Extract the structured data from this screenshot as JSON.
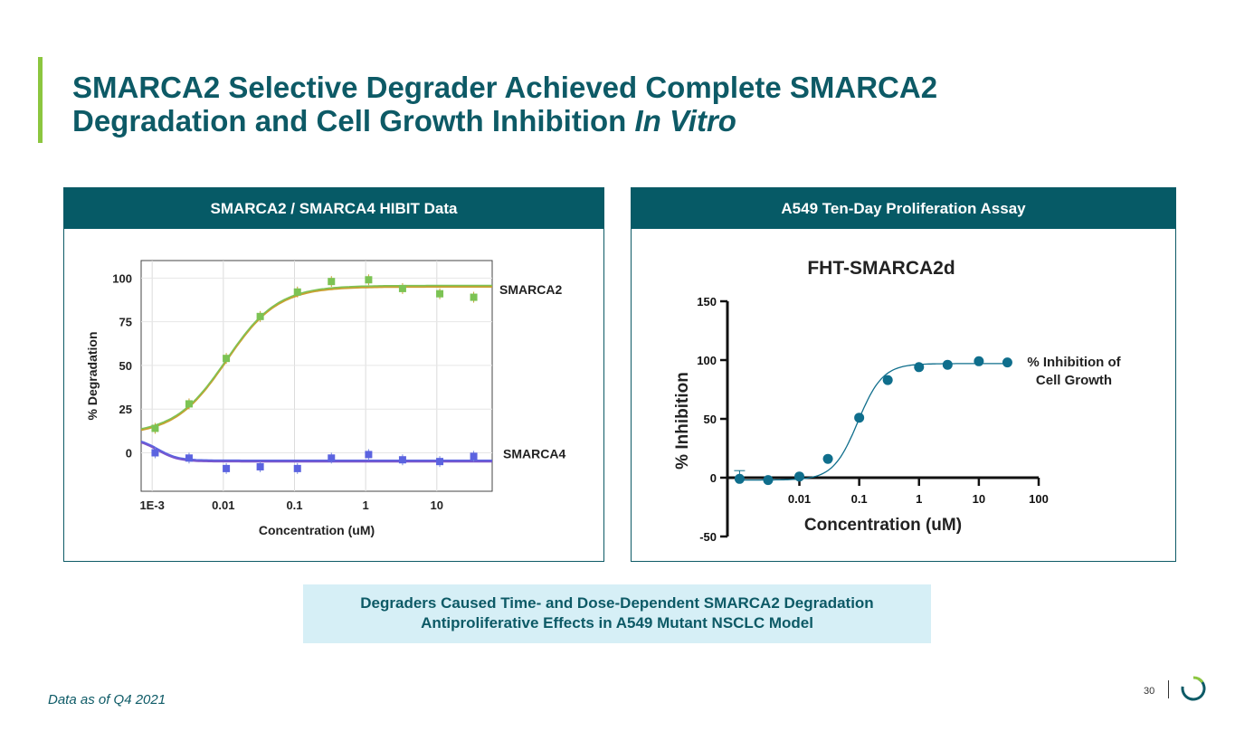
{
  "slide": {
    "title_line1": "SMARCA2 Selective Degrader Achieved Complete SMARCA2",
    "title_line2_plain": "Degradation and Cell Growth Inhibition ",
    "title_line2_italic": "In Vitro",
    "summary_line1": "Degraders Caused Time- and Dose-Dependent SMARCA2 Degradation",
    "summary_line2": "Antiproliferative Effects in A549 Mutant NSCLC Model",
    "footnote": "Data as of Q4 2021",
    "page_number": "30",
    "colors": {
      "brand_teal": "#065a66",
      "accent_green": "#8cc63f",
      "summary_bg": "#d6eff6"
    }
  },
  "panels": {
    "left_header": "SMARCA2 / SMARCA4 HIBIT Data",
    "right_header": "A549 Ten-Day Proliferation Assay"
  },
  "chart_data": [
    {
      "type": "scatter",
      "title": "",
      "xlabel": "Concentration (uM)",
      "ylabel": "% Degradation",
      "xscale": "log",
      "xlim": [
        0.0007,
        60
      ],
      "ylim": [
        -22,
        110
      ],
      "x_tick_values": [
        0.001,
        0.01,
        0.1,
        1,
        10
      ],
      "x_tick_labels": [
        "1E-3",
        "0.01",
        "0.1",
        "1",
        "10"
      ],
      "y_ticks": [
        0,
        25,
        50,
        75,
        100
      ],
      "grid": true,
      "series": [
        {
          "name": "SMARCA2",
          "color": "#7cc354",
          "fit_color": "#c8a030",
          "x": [
            0.0011,
            0.0033,
            0.011,
            0.033,
            0.11,
            0.33,
            1.1,
            3.3,
            11,
            33
          ],
          "y": [
            14,
            28,
            54,
            78,
            92,
            98,
            99,
            94,
            91,
            89
          ],
          "fit": {
            "bottom": 10,
            "top": 95,
            "ec50": 0.011,
            "hill": 1.2
          }
        },
        {
          "name": "SMARCA4",
          "color": "#5b63e0",
          "fit_color": "#7a55cc",
          "x": [
            0.0011,
            0.0033,
            0.011,
            0.033,
            0.11,
            0.33,
            1.1,
            3.3,
            11,
            33
          ],
          "y": [
            0,
            -3,
            -9,
            -8,
            -9,
            -3,
            -1,
            -4,
            -5,
            -2
          ],
          "fit": {
            "bottom": -5,
            "top": 8,
            "ec50": 0.0012,
            "hill": -3
          }
        }
      ]
    },
    {
      "type": "scatter",
      "title": "FHT-SMARCA2d",
      "xlabel": "Concentration (uM)",
      "ylabel": "% Inhibition",
      "xscale": "log",
      "xlim": [
        0.0008,
        100
      ],
      "ylim": [
        -50,
        150
      ],
      "x_tick_values": [
        0.01,
        0.1,
        1,
        10,
        100
      ],
      "x_tick_labels": [
        "0.01",
        "0.1",
        "1",
        "10",
        "100"
      ],
      "y_ticks": [
        -50,
        0,
        50,
        100,
        150
      ],
      "legend": [
        "% Inhibition of",
        "Cell Growth"
      ],
      "series": [
        {
          "name": "% Inhibition of Cell Growth",
          "color": "#0f6e8c",
          "x": [
            0.001,
            0.003,
            0.01,
            0.03,
            0.1,
            0.3,
            1,
            3,
            10,
            30
          ],
          "y": [
            -1,
            -2,
            1,
            16,
            51,
            83,
            94,
            96,
            99,
            98
          ],
          "fit": {
            "bottom": -2,
            "top": 97,
            "ec50": 0.095,
            "hill": 2.1
          }
        }
      ]
    }
  ]
}
